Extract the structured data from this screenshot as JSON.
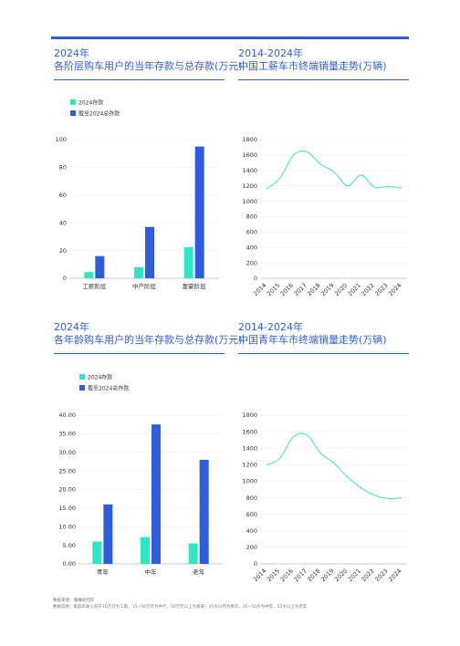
{
  "panels": [
    {
      "year": "2024年",
      "title": "各阶层购车用户的当年存款与总存款(万元)"
    },
    {
      "year": "2014-2024年",
      "title": "中国工薪车市终端销量走势(万辆)"
    },
    {
      "year": "2024年",
      "title": "各年龄购车用户的当年存款与总存款(万元)"
    },
    {
      "year": "2014-2024年",
      "title": "中国青年车市终端销量走势(万辆)"
    }
  ],
  "footer": {
    "source": "数据来源：懂懂研究院",
    "note": "数据说明：家庭年收入低于10万元为工薪，15~50万元为中产，50万元以上为富豪；35岁以内为青年，35~55岁为中年，55岁以上为老年"
  },
  "colors": {
    "accent": "#2f5de0",
    "current": "#2ee6c6",
    "total": "#2f5de0",
    "line": "#3fdcc4"
  },
  "chart_data": [
    {
      "type": "bar",
      "title": "各阶层购车用户的当年存款与总存款(万元)",
      "categories": [
        "工薪阶层",
        "中产阶层",
        "富豪阶层"
      ],
      "series": [
        {
          "name": "2024存款",
          "values": [
            4.5,
            8,
            22.5
          ]
        },
        {
          "name": "截至2024总存款",
          "values": [
            16,
            37,
            95
          ]
        }
      ],
      "yticks": [
        "0",
        "20",
        "40",
        "60",
        "80",
        "100"
      ],
      "ylim": [
        0,
        100
      ],
      "legend": "top-left"
    },
    {
      "type": "line",
      "title": "中国工薪车市终端销量走势(万辆)",
      "x": [
        "2014",
        "2015",
        "2016",
        "2017",
        "2018",
        "2019",
        "2020",
        "2021",
        "2022",
        "2023",
        "2024"
      ],
      "values": [
        1160,
        1300,
        1600,
        1640,
        1480,
        1380,
        1200,
        1340,
        1180,
        1190,
        1170
      ],
      "yticks": [
        "0",
        "200",
        "400",
        "600",
        "800",
        "1000",
        "1200",
        "1400",
        "1600",
        "1800"
      ],
      "ylim": [
        0,
        1800
      ]
    },
    {
      "type": "bar",
      "title": "各年龄购车用户的当年存款与总存款(万元)",
      "categories": [
        "青年",
        "中年",
        "老年"
      ],
      "series": [
        {
          "name": "2024存款",
          "values": [
            6,
            7.2,
            5.5
          ]
        },
        {
          "name": "截至2024总存款",
          "values": [
            16,
            37.5,
            28
          ]
        }
      ],
      "yticks": [
        "0.00",
        "5.00",
        "10.00",
        "15.00",
        "20.00",
        "25.00",
        "30.00",
        "35.00",
        "40.00"
      ],
      "ylim": [
        0,
        40
      ],
      "legend": "top-left"
    },
    {
      "type": "line",
      "title": "中国青年车市终端销量走势(万辆)",
      "x": [
        "2014",
        "2015",
        "2016",
        "2017",
        "2018",
        "2019",
        "2020",
        "2021",
        "2022",
        "2023",
        "2024"
      ],
      "values": [
        1200,
        1280,
        1540,
        1560,
        1340,
        1220,
        1050,
        920,
        830,
        790,
        800
      ],
      "yticks": [
        "0",
        "200",
        "400",
        "600",
        "800",
        "1000",
        "1200",
        "1400",
        "1600",
        "1800"
      ],
      "ylim": [
        0,
        1800
      ]
    }
  ]
}
